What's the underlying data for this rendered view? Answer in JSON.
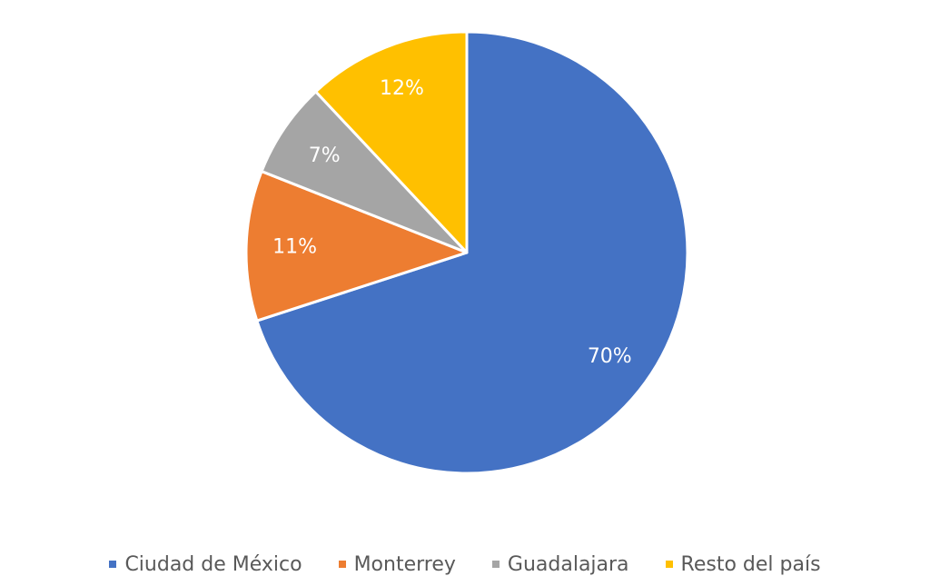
{
  "chart_data": {
    "type": "pie",
    "title": "",
    "categories": [
      "Ciudad de México",
      "Monterrey",
      "Guadalajara",
      "Resto del país"
    ],
    "values": [
      70,
      11,
      7,
      12
    ],
    "data_labels": [
      "70%",
      "11%",
      "7%",
      "12%"
    ],
    "colors": [
      "#4472C4",
      "#ED7D31",
      "#A5A5A5",
      "#FFC000"
    ],
    "legend_position": "bottom",
    "start_angle_deg": 0,
    "direction": "clockwise"
  }
}
